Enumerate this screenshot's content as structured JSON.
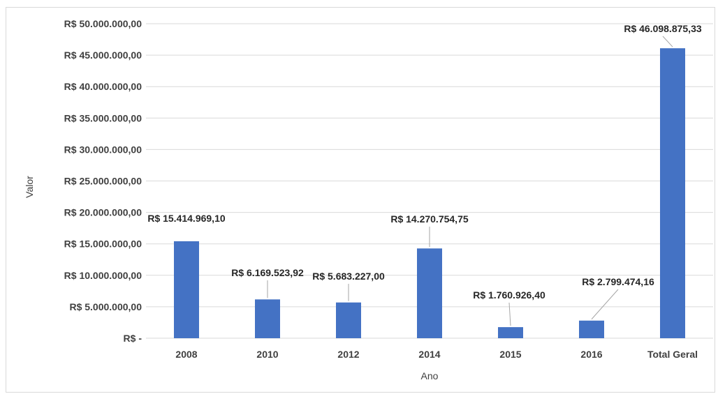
{
  "chart_data": {
    "type": "bar",
    "title": "",
    "xlabel": "Ano",
    "ylabel": "Valor",
    "categories": [
      "2008",
      "2010",
      "2012",
      "2014",
      "2015",
      "2016",
      "Total Geral"
    ],
    "values": [
      15414969.1,
      6169523.92,
      5683227.0,
      14270754.75,
      1760926.4,
      2799474.16,
      46098875.33
    ],
    "data_labels": [
      "R$ 15.414.969,10",
      "R$ 6.169.523,92",
      "R$ 5.683.227,00",
      "R$ 14.270.754,75",
      "R$ 1.760.926,40",
      "R$ 2.799.474,16",
      "R$ 46.098.875,33"
    ],
    "ylim": [
      0,
      50000000
    ],
    "y_ticks": [
      0,
      5000000,
      10000000,
      15000000,
      20000000,
      25000000,
      30000000,
      35000000,
      40000000,
      45000000,
      50000000
    ],
    "y_tick_labels": [
      "R$ -",
      "R$ 5.000.000,00",
      "R$ 10.000.000,00",
      "R$ 15.000.000,00",
      "R$ 20.000.000,00",
      "R$ 25.000.000,00",
      "R$ 30.000.000,00",
      "R$ 35.000.000,00",
      "R$ 40.000.000,00",
      "R$ 45.000.000,00",
      "R$ 50.000.000,00"
    ],
    "grid": true,
    "legend": "none",
    "colors": {
      "bar": "#4472c4",
      "grid": "#d9d9d9",
      "leader": "#a6a6a6"
    }
  }
}
